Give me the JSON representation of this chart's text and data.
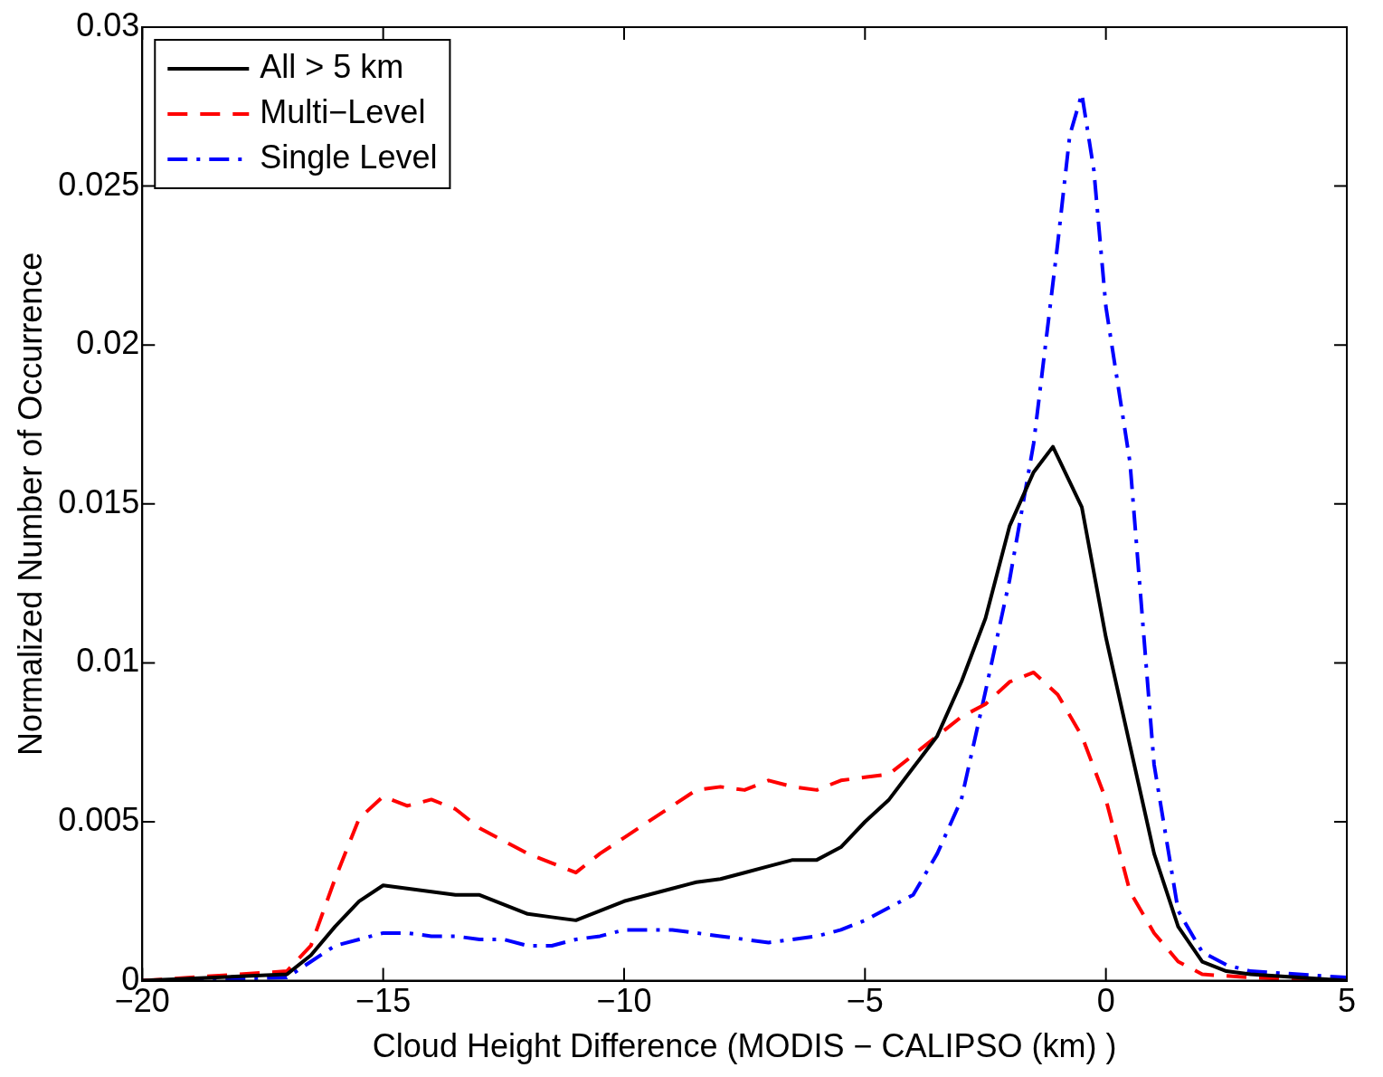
{
  "chart_data": {
    "type": "line",
    "xlabel": "Cloud Height Difference (MODIS − CALIPSO (km) )",
    "ylabel": "Normalized Number of Occurrence",
    "xlim": [
      -20,
      5
    ],
    "xticks": [
      {
        "value": -20,
        "label": "−20"
      },
      {
        "value": -15,
        "label": "−15"
      },
      {
        "value": -10,
        "label": "−10"
      },
      {
        "value": -5,
        "label": "−5"
      },
      0,
      5
    ],
    "ylim": [
      0,
      0.03
    ],
    "yticks": [
      0,
      0.005,
      0.01,
      0.015,
      0.02,
      0.025,
      0.03
    ],
    "grid": false,
    "legend": "top left",
    "marker": "none",
    "series": [
      {
        "name": "All > 5 km",
        "color": "#000000",
        "line_style": "solid",
        "x": [
          -20,
          -17,
          -16.5,
          -16,
          -15.5,
          -15,
          -14.5,
          -14,
          -13.5,
          -13,
          -12.5,
          -12,
          -11.5,
          -11,
          -10.5,
          -10,
          -9.5,
          -9,
          -8.5,
          -8,
          -7.5,
          -7,
          -6.5,
          -6,
          -5.5,
          -5,
          -4.5,
          -4,
          -3.5,
          -3,
          -2.5,
          -2,
          -1.5,
          -1.1,
          -0.5,
          0,
          0.5,
          1,
          1.5,
          2,
          2.5,
          3,
          4,
          5
        ],
        "values": [
          0,
          0.0002,
          0.0008,
          0.0017,
          0.0025,
          0.003,
          0.0029,
          0.0028,
          0.0027,
          0.0027,
          0.0024,
          0.0021,
          0.002,
          0.0019,
          0.0022,
          0.0025,
          0.0027,
          0.0029,
          0.0031,
          0.0032,
          0.0034,
          0.0036,
          0.0038,
          0.0038,
          0.0042,
          0.005,
          0.0057,
          0.0067,
          0.0077,
          0.0094,
          0.0114,
          0.0143,
          0.016,
          0.0168,
          0.0149,
          0.0108,
          0.0074,
          0.004,
          0.0017,
          0.0006,
          0.0003,
          0.0002,
          0.0001,
          0
        ]
      },
      {
        "name": "Multi−Level",
        "color": "#ff0000",
        "line_style": "dashed",
        "x": [
          -20,
          -17,
          -16.5,
          -16,
          -15.5,
          -15,
          -14.5,
          -14,
          -13.5,
          -13,
          -12.5,
          -12,
          -11.5,
          -11,
          -10.5,
          -10,
          -9.5,
          -9,
          -8.5,
          -8,
          -7.5,
          -7,
          -6.5,
          -6,
          -5.5,
          -5,
          -4.5,
          -4,
          -3.5,
          -3,
          -2.5,
          -2,
          -1.5,
          -1,
          -0.5,
          0,
          0.5,
          1,
          1.5,
          2,
          3,
          5
        ],
        "values": [
          0,
          0.0003,
          0.0011,
          0.0032,
          0.0051,
          0.0058,
          0.0055,
          0.0057,
          0.0054,
          0.0048,
          0.0044,
          0.004,
          0.0037,
          0.0034,
          0.004,
          0.0045,
          0.005,
          0.0055,
          0.006,
          0.0061,
          0.006,
          0.0063,
          0.0061,
          0.006,
          0.0063,
          0.0064,
          0.0065,
          0.0071,
          0.0077,
          0.0083,
          0.0087,
          0.0094,
          0.0097,
          0.009,
          0.0077,
          0.0057,
          0.0028,
          0.0015,
          0.0006,
          0.0002,
          0.0001,
          0
        ]
      },
      {
        "name": "Single Level",
        "color": "#0000ff",
        "line_style": "dashdot",
        "x": [
          -20,
          -17,
          -16.5,
          -16,
          -15.5,
          -15,
          -14.5,
          -14,
          -13.5,
          -13,
          -12.5,
          -12,
          -11.5,
          -11,
          -10.5,
          -10,
          -9.5,
          -9,
          -8.5,
          -8,
          -7.5,
          -7,
          -6.5,
          -6,
          -5.5,
          -5,
          -4.5,
          -4,
          -3.5,
          -3,
          -2.5,
          -2,
          -1.5,
          -1,
          -0.75,
          -0.5,
          -0.25,
          0,
          0.5,
          1,
          1.5,
          2,
          2.5,
          3,
          4,
          5
        ],
        "values": [
          0,
          0.0001,
          0.0006,
          0.0011,
          0.0013,
          0.0015,
          0.0015,
          0.0014,
          0.0014,
          0.0013,
          0.0013,
          0.0011,
          0.0011,
          0.0013,
          0.0014,
          0.0016,
          0.0016,
          0.0016,
          0.0015,
          0.0014,
          0.0013,
          0.0012,
          0.0013,
          0.0014,
          0.0016,
          0.0019,
          0.0023,
          0.0027,
          0.004,
          0.0057,
          0.0091,
          0.0126,
          0.0169,
          0.0232,
          0.0266,
          0.0279,
          0.0255,
          0.0212,
          0.0163,
          0.0068,
          0.0022,
          0.0009,
          0.0005,
          0.0003,
          0.0002,
          0.0001
        ]
      }
    ]
  }
}
